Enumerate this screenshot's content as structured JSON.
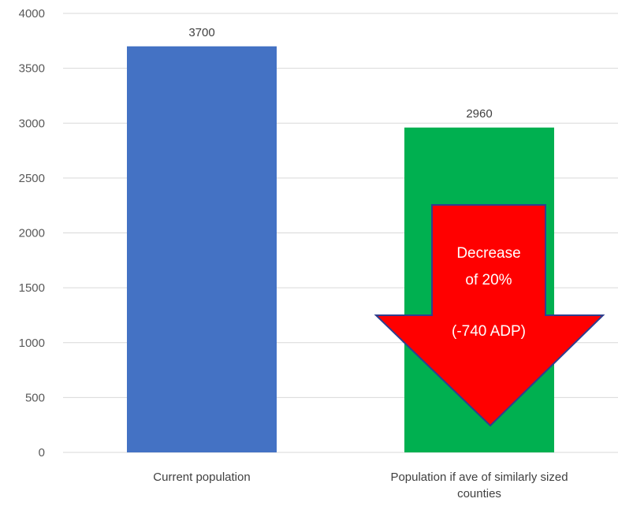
{
  "chart_data": {
    "type": "bar",
    "categories": [
      "Current population",
      "Population if ave of similarly sized counties"
    ],
    "values": [
      3700,
      2960
    ],
    "data_labels": [
      "3700",
      "2960"
    ],
    "colors": [
      "#4472C4",
      "#00B050"
    ],
    "ylim": [
      0,
      4000
    ],
    "yticks": [
      0,
      500,
      1000,
      1500,
      2000,
      2500,
      3000,
      3500,
      4000
    ],
    "grid": true,
    "legend": "none",
    "annotation": {
      "line1": "Decrease",
      "line2": "of 20%",
      "line3": "(-740 ADP)",
      "fill": "#FF0000",
      "stroke": "#2F3F8F"
    }
  }
}
